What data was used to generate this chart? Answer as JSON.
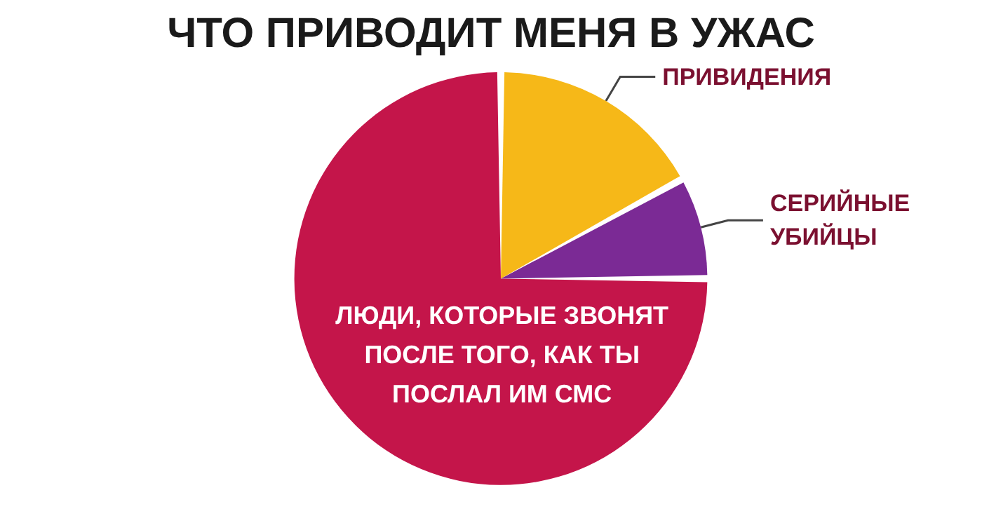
{
  "chart_data": {
    "type": "pie",
    "title": "ЧТО ПРИВОДИТ МЕНЯ В УЖАС",
    "categories": [
      "ПРИВИДЕНИЯ",
      "СЕРИЙНЫЕ УБИЙЦЫ",
      "ЛЮДИ, КОТОРЫЕ ЗВОНЯТ ПОСЛЕ ТОГО, КАК ТЫ ПОСЛАЛ ИМ СМС"
    ],
    "values": [
      17,
      8,
      75
    ],
    "colors": [
      "#f6b818",
      "#7b2a95",
      "#c4154a"
    ],
    "legend": false
  }
}
